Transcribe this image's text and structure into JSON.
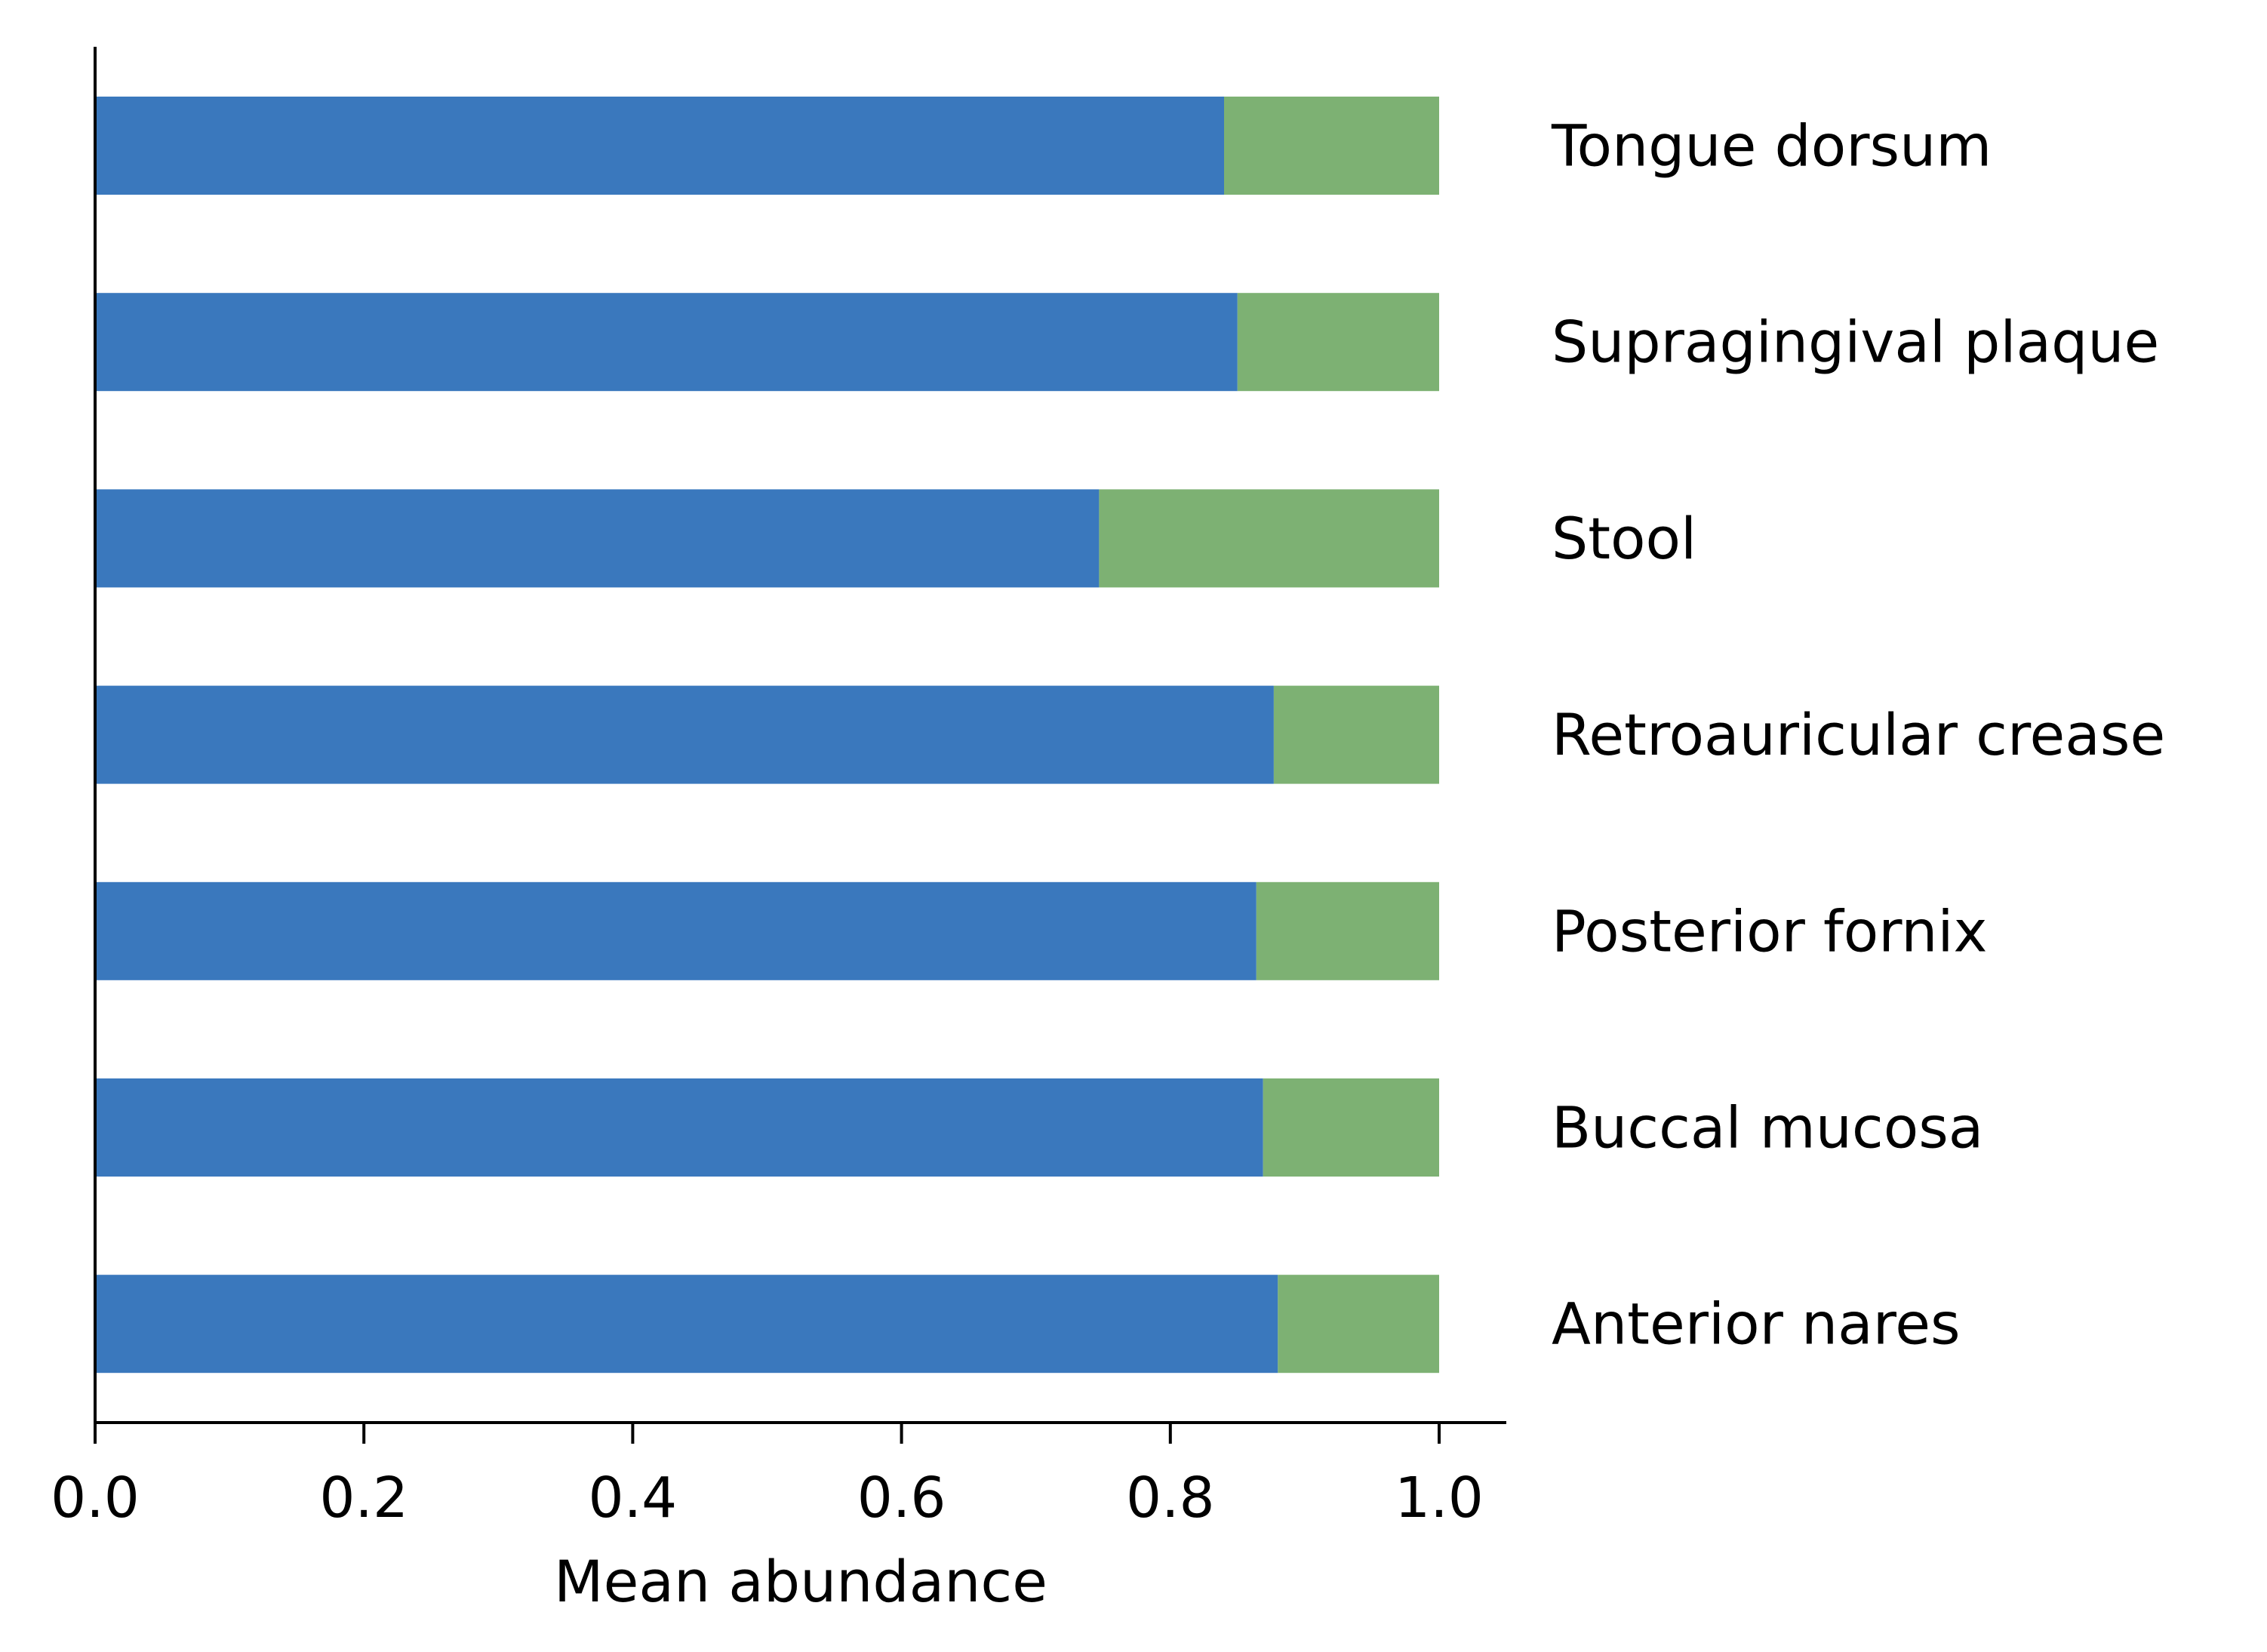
{
  "chart_data": {
    "type": "bar",
    "orientation": "horizontal",
    "stacked": true,
    "title": "",
    "xlabel": "Mean abundance",
    "ylabel": "",
    "xlim": [
      0.0,
      1.05
    ],
    "x_ticks": [
      "0.0",
      "0.2",
      "0.4",
      "0.6",
      "0.8",
      "1.0"
    ],
    "grid": false,
    "legend": "none",
    "category_label_position": "right",
    "categories": [
      "Tongue dorsum",
      "Supragingival plaque",
      "Stool",
      "Retroauricular crease",
      "Posterior fornix",
      "Buccal mucosa",
      "Anterior nares"
    ],
    "series": [
      {
        "color": "#3a78bd",
        "values": [
          0.84,
          0.85,
          0.747,
          0.877,
          0.864,
          0.869,
          0.88
        ]
      },
      {
        "color": "#7db173",
        "values": [
          0.16,
          0.15,
          0.253,
          0.123,
          0.136,
          0.131,
          0.12
        ]
      }
    ]
  }
}
